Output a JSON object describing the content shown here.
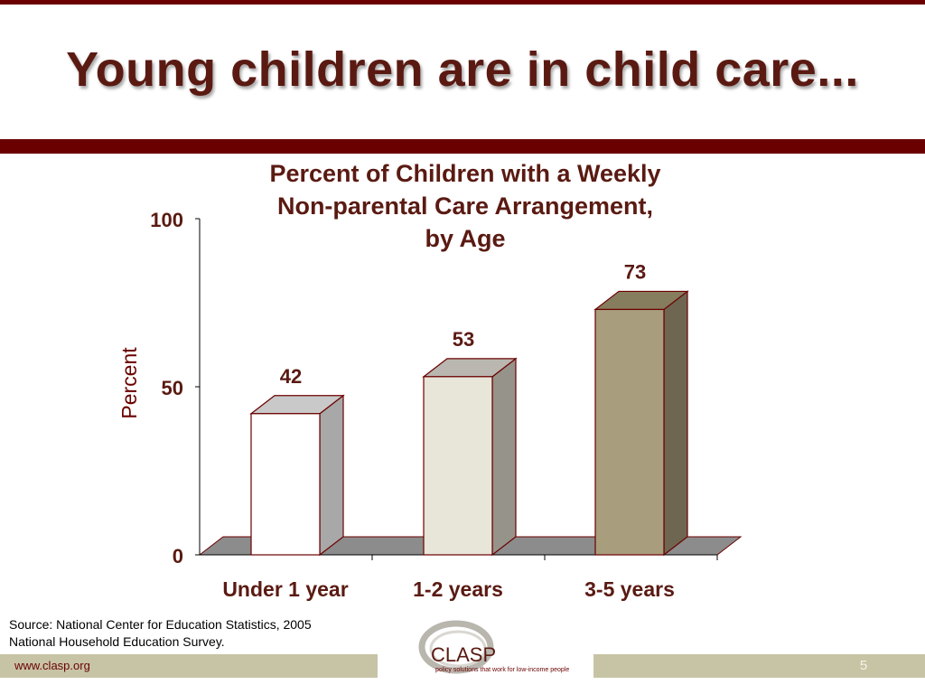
{
  "slide": {
    "title": "Young children are in child care...",
    "source_line1": "Source: National Center for Education Statistics, 2005",
    "source_line2": "National Household Education Survey.",
    "footer_url": "www.clasp.org",
    "page_number": "5",
    "logo_text": "CLASP",
    "logo_tagline": "policy solutions that work for low-income people",
    "colors": {
      "accent": "#6b0000",
      "title_text": "#5a1a12",
      "footer_band": "#c7c4a6"
    }
  },
  "chart_data": {
    "type": "bar",
    "title_lines": [
      "Percent of Children with a Weekly",
      "Non-parental Care Arrangement,",
      "by Age"
    ],
    "ylabel": "Percent",
    "xlabel": "",
    "categories": [
      "Under 1 year",
      "1-2 years",
      "3-5 years"
    ],
    "values": [
      42,
      53,
      73
    ],
    "data_labels": [
      "42",
      "53",
      "73"
    ],
    "ylim": [
      0,
      100
    ],
    "yticks": [
      "0",
      "50",
      "100"
    ],
    "ytick_values": [
      0,
      50,
      100
    ],
    "bar_colors": [
      "#ffffff",
      "#e8e5d9",
      "#a89d7c"
    ],
    "bar_side_colors": [
      "#a8a8a8",
      "#96938a",
      "#6e6650"
    ],
    "bar_top_colors": [
      "#c9c9c9",
      "#b9b7b0",
      "#867c5e"
    ],
    "floor_color": "#8c8c8c",
    "grid": false,
    "legend": "none",
    "style": "3d-columns"
  }
}
